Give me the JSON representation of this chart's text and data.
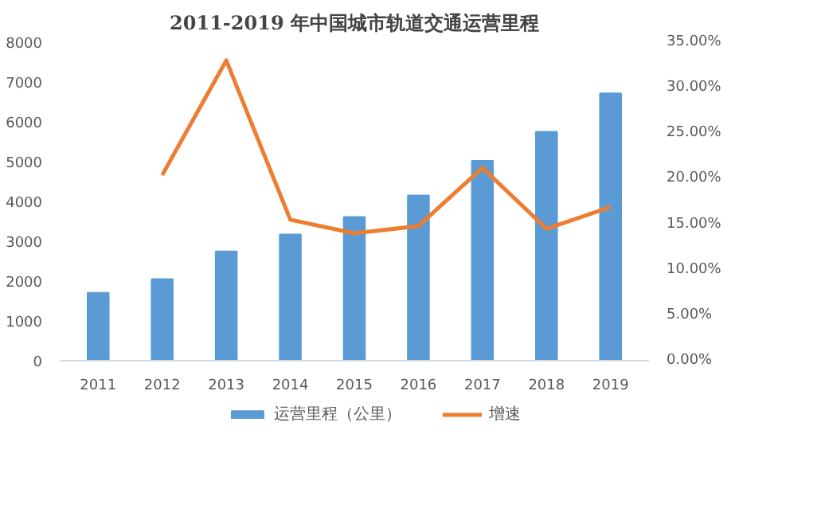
{
  "chart_data": {
    "type": "bar",
    "title": "2011-2019 年中国城市轨道交通运营里程",
    "categories": [
      "2011",
      "2012",
      "2013",
      "2014",
      "2015",
      "2016",
      "2017",
      "2018",
      "2019"
    ],
    "series": [
      {
        "name": "运营里程（公里）",
        "color": "#5b9bd5",
        "values": [
          1707,
          2049,
          2744,
          3171,
          3610,
          4152,
          5018,
          5751,
          6716
        ]
      },
      {
        "name": "增速",
        "type": "line",
        "axis": "y2",
        "color": "#ed7d31",
        "values": [
          null,
          20.4,
          33.0,
          15.5,
          14.0,
          14.8,
          21.2,
          14.5,
          16.9
        ]
      }
    ],
    "ylim": [
      0,
      8000
    ],
    "yticks": [
      0,
      1000,
      2000,
      3000,
      4000,
      5000,
      6000,
      7000,
      8000
    ],
    "y2lim": [
      0,
      35
    ],
    "y2ticks": [
      {
        "value": 0,
        "label": "0.00%"
      },
      {
        "value": 5,
        "label": "5.00%"
      },
      {
        "value": 10,
        "label": "10.00%"
      },
      {
        "value": 15,
        "label": "15.00%"
      },
      {
        "value": 20,
        "label": "20.00%"
      },
      {
        "value": 25,
        "label": "25.00%"
      },
      {
        "value": 30,
        "label": "30.00%"
      },
      {
        "value": 35,
        "label": "35.00%"
      }
    ],
    "grid": false,
    "legend": "bottom"
  }
}
